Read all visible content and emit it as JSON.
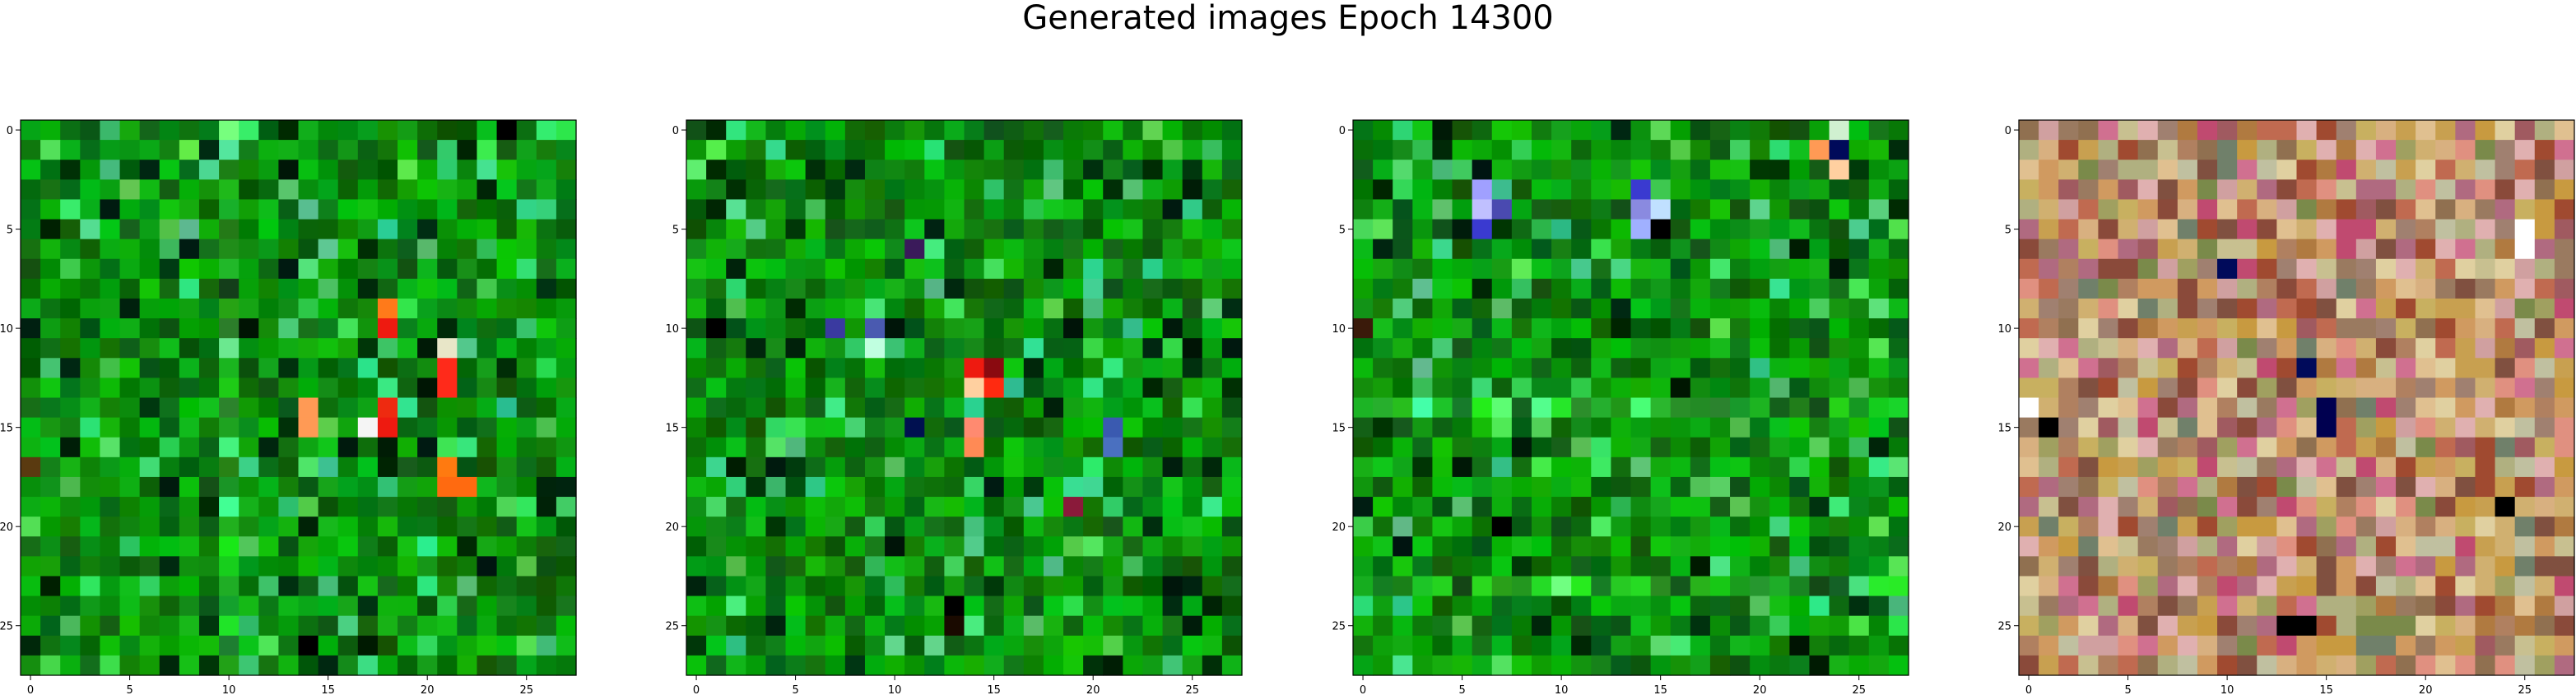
{
  "figure": {
    "title": "Generated images Epoch 14300"
  },
  "chart_data": [
    {
      "type": "heatmap",
      "panel": 1,
      "palette": "green",
      "xlim": [
        0,
        27
      ],
      "ylim": [
        27,
        0
      ],
      "x_ticks": [
        "0",
        "5",
        "10",
        "15",
        "20",
        "25"
      ],
      "y_ticks": [
        "0",
        "5",
        "10",
        "15",
        "20",
        "25"
      ],
      "highlights": [
        {
          "r": 9,
          "c": 18,
          "color": "#ff7a1a"
        },
        {
          "r": 10,
          "c": 18,
          "color": "#ee1a10"
        },
        {
          "r": 11,
          "c": 21,
          "color": "#e8e6c8"
        },
        {
          "r": 12,
          "c": 21,
          "color": "#ff2a1a"
        },
        {
          "r": 13,
          "c": 21,
          "color": "#ff2a1a"
        },
        {
          "r": 14,
          "c": 14,
          "color": "#ff9a55"
        },
        {
          "r": 15,
          "c": 14,
          "color": "#ff9a55"
        },
        {
          "r": 14,
          "c": 18,
          "color": "#ee2a10"
        },
        {
          "r": 15,
          "c": 18,
          "color": "#ee1a10"
        },
        {
          "r": 15,
          "c": 17,
          "color": "#f5f5f5"
        },
        {
          "r": 17,
          "c": 21,
          "color": "#ff7a10"
        },
        {
          "r": 18,
          "c": 21,
          "color": "#ff6a10"
        },
        {
          "r": 18,
          "c": 22,
          "color": "#ff6a10"
        },
        {
          "r": 17,
          "c": 0,
          "color": "#5a3a10"
        },
        {
          "r": 26,
          "c": 14,
          "color": "#000000"
        },
        {
          "r": 0,
          "c": 24,
          "color": "#000000"
        }
      ]
    },
    {
      "type": "heatmap",
      "panel": 2,
      "palette": "green",
      "xlim": [
        0,
        27
      ],
      "ylim": [
        27,
        0
      ],
      "x_ticks": [
        "0",
        "5",
        "10",
        "15",
        "20",
        "25"
      ],
      "y_ticks": [
        "0",
        "5",
        "10",
        "15",
        "20",
        "25"
      ],
      "highlights": [
        {
          "r": 10,
          "c": 1,
          "color": "#000000"
        },
        {
          "r": 10,
          "c": 7,
          "color": "#3a3aa0"
        },
        {
          "r": 10,
          "c": 9,
          "color": "#4a5ab0"
        },
        {
          "r": 11,
          "c": 9,
          "color": "#c0ffe0"
        },
        {
          "r": 12,
          "c": 14,
          "color": "#ee1a10"
        },
        {
          "r": 12,
          "c": 15,
          "color": "#8a0a10"
        },
        {
          "r": 13,
          "c": 14,
          "color": "#ffd0a0"
        },
        {
          "r": 13,
          "c": 15,
          "color": "#ff2a10"
        },
        {
          "r": 15,
          "c": 14,
          "color": "#ff8a70"
        },
        {
          "r": 16,
          "c": 14,
          "color": "#ff8a55"
        },
        {
          "r": 15,
          "c": 11,
          "color": "#001050"
        },
        {
          "r": 15,
          "c": 21,
          "color": "#3a5ab0"
        },
        {
          "r": 16,
          "c": 21,
          "color": "#4a70c0"
        },
        {
          "r": 19,
          "c": 19,
          "color": "#8a1a3a"
        },
        {
          "r": 24,
          "c": 13,
          "color": "#000000"
        },
        {
          "r": 25,
          "c": 13,
          "color": "#1a0a00"
        },
        {
          "r": 6,
          "c": 11,
          "color": "#3a1a5a"
        }
      ]
    },
    {
      "type": "heatmap",
      "panel": 3,
      "palette": "green",
      "xlim": [
        0,
        27
      ],
      "ylim": [
        27,
        0
      ],
      "x_ticks": [
        "0",
        "5",
        "10",
        "15",
        "20",
        "25"
      ],
      "y_ticks": [
        "0",
        "5",
        "10",
        "15",
        "20",
        "25"
      ],
      "highlights": [
        {
          "r": 0,
          "c": 24,
          "color": "#d0f0d0"
        },
        {
          "r": 1,
          "c": 23,
          "color": "#ff9a55"
        },
        {
          "r": 1,
          "c": 24,
          "color": "#000a5a"
        },
        {
          "r": 2,
          "c": 24,
          "color": "#ffd0a0"
        },
        {
          "r": 3,
          "c": 6,
          "color": "#a0a0ff"
        },
        {
          "r": 4,
          "c": 6,
          "color": "#c0c0ff"
        },
        {
          "r": 4,
          "c": 7,
          "color": "#4a4ab0"
        },
        {
          "r": 5,
          "c": 6,
          "color": "#3a3ad0"
        },
        {
          "r": 3,
          "c": 14,
          "color": "#3a3ad0"
        },
        {
          "r": 4,
          "c": 14,
          "color": "#8a8ae0"
        },
        {
          "r": 4,
          "c": 15,
          "color": "#c0e0ff"
        },
        {
          "r": 5,
          "c": 14,
          "color": "#a0b0ff"
        },
        {
          "r": 5,
          "c": 15,
          "color": "#000000"
        },
        {
          "r": 10,
          "c": 0,
          "color": "#3a1a0a"
        },
        {
          "r": 20,
          "c": 7,
          "color": "#000000"
        }
      ]
    },
    {
      "type": "heatmap",
      "panel": 4,
      "palette": "multicolor",
      "xlim": [
        0,
        27
      ],
      "ylim": [
        27,
        0
      ],
      "x_ticks": [
        "0",
        "5",
        "10",
        "15",
        "20",
        "25"
      ],
      "y_ticks": [
        "0",
        "5",
        "10",
        "15",
        "20",
        "25"
      ],
      "highlights": [
        {
          "r": 5,
          "c": 25,
          "color": "#ffffff"
        },
        {
          "r": 6,
          "c": 25,
          "color": "#ffffff"
        },
        {
          "r": 7,
          "c": 10,
          "color": "#000a5a"
        },
        {
          "r": 12,
          "c": 14,
          "color": "#000a5a"
        },
        {
          "r": 14,
          "c": 15,
          "color": "#000050"
        },
        {
          "r": 15,
          "c": 15,
          "color": "#000050"
        },
        {
          "r": 14,
          "c": 0,
          "color": "#ffffff"
        },
        {
          "r": 15,
          "c": 1,
          "color": "#000000"
        },
        {
          "r": 25,
          "c": 13,
          "color": "#000000"
        },
        {
          "r": 25,
          "c": 14,
          "color": "#000000"
        },
        {
          "r": 19,
          "c": 24,
          "color": "#000000"
        }
      ]
    }
  ]
}
